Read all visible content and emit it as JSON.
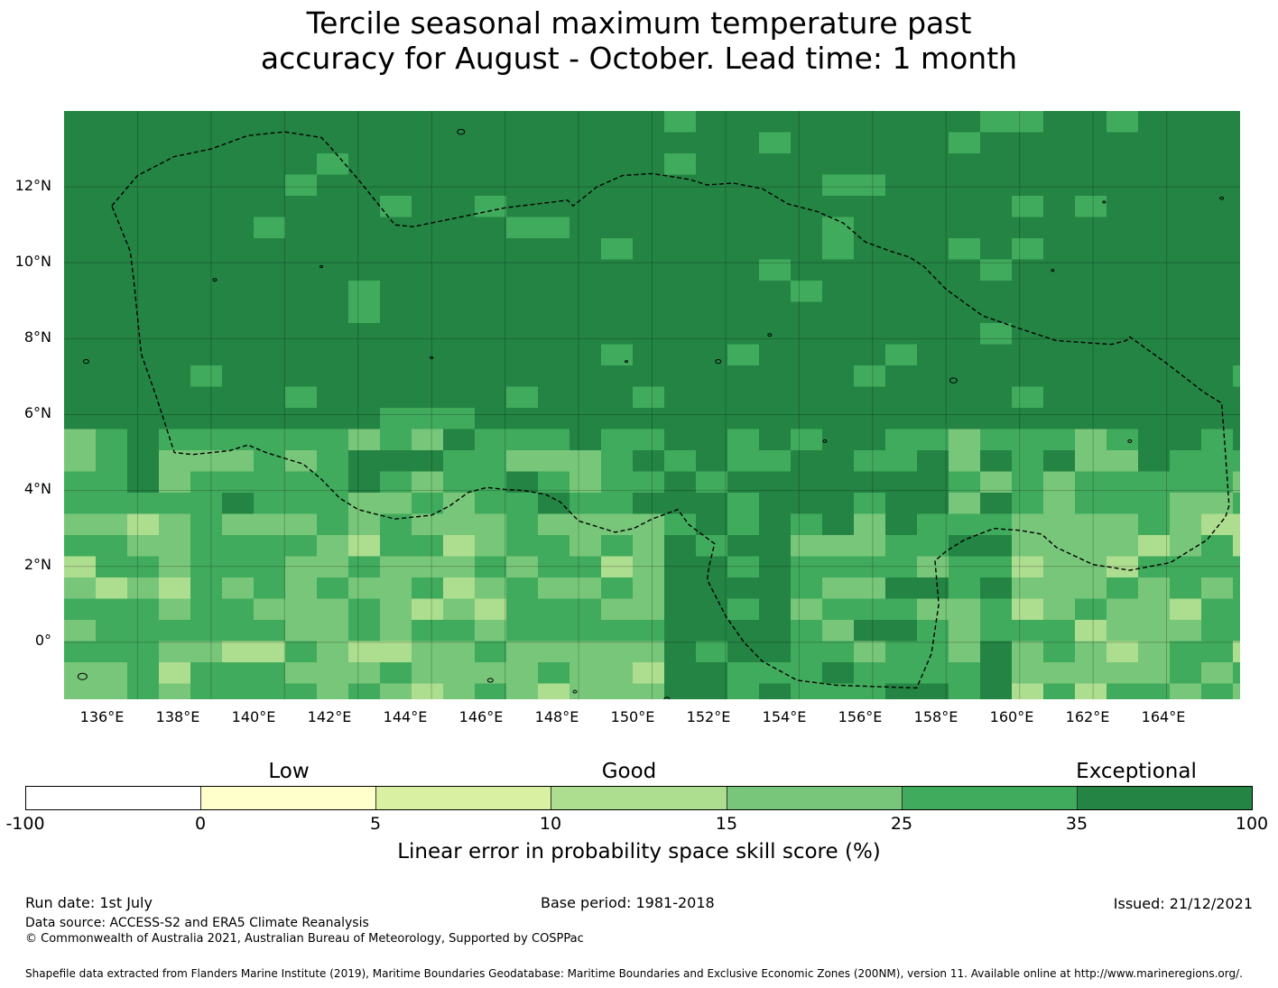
{
  "title": {
    "line1": "Tercile seasonal maximum temperature past",
    "line2": "accuracy for August - October. Lead time: 1 month"
  },
  "map": {
    "lat_labels": [
      "12°N",
      "10°N",
      "8°N",
      "6°N",
      "4°N",
      "2°N",
      "0°"
    ],
    "lon_labels": [
      "136°E",
      "138°E",
      "140°E",
      "142°E",
      "144°E",
      "146°E",
      "148°E",
      "150°E",
      "152°E",
      "154°E",
      "156°E",
      "158°E",
      "160°E",
      "162°E",
      "164°E"
    ],
    "extent": {
      "lon_min": 134,
      "lon_max": 166,
      "lat_min": -1.5,
      "lat_max": 14
    },
    "eez_boundary_lonlat": [
      [
        135.3,
        11.5
      ],
      [
        136.0,
        12.3
      ],
      [
        137.0,
        12.8
      ],
      [
        138.0,
        13.0
      ],
      [
        139.0,
        13.35
      ],
      [
        140.0,
        13.45
      ],
      [
        141.0,
        13.3
      ],
      [
        141.2,
        13.1
      ],
      [
        142.0,
        12.2
      ],
      [
        143.0,
        11.0
      ],
      [
        143.5,
        10.95
      ],
      [
        144.5,
        11.15
      ],
      [
        146.0,
        11.45
      ],
      [
        147.7,
        11.65
      ],
      [
        147.85,
        11.5
      ],
      [
        148.5,
        12.0
      ],
      [
        149.2,
        12.3
      ],
      [
        150.0,
        12.35
      ],
      [
        151.0,
        12.2
      ],
      [
        151.5,
        12.05
      ],
      [
        152.2,
        12.1
      ],
      [
        153.0,
        11.95
      ],
      [
        153.7,
        11.55
      ],
      [
        154.5,
        11.35
      ],
      [
        155.2,
        11.05
      ],
      [
        155.8,
        10.55
      ],
      [
        156.5,
        10.3
      ],
      [
        157.0,
        10.15
      ],
      [
        157.4,
        9.9
      ],
      [
        158.0,
        9.3
      ],
      [
        159.0,
        8.6
      ],
      [
        159.9,
        8.3
      ],
      [
        161.0,
        7.95
      ],
      [
        162.5,
        7.85
      ],
      [
        162.9,
        7.95
      ],
      [
        163.0,
        8.05
      ],
      [
        164.0,
        7.35
      ],
      [
        165.0,
        6.6
      ],
      [
        165.5,
        6.3
      ],
      [
        165.6,
        5.0
      ],
      [
        165.7,
        3.6
      ],
      [
        165.6,
        3.3
      ],
      [
        165.1,
        2.7
      ],
      [
        164.1,
        2.1
      ],
      [
        163.0,
        1.9
      ],
      [
        162.0,
        2.05
      ],
      [
        161.0,
        2.5
      ],
      [
        160.6,
        2.85
      ],
      [
        160.0,
        2.95
      ],
      [
        159.3,
        3.0
      ],
      [
        158.5,
        2.7
      ],
      [
        158.0,
        2.4
      ],
      [
        157.7,
        2.15
      ],
      [
        157.8,
        1.0
      ],
      [
        157.6,
        -0.3
      ],
      [
        157.2,
        -1.2
      ],
      [
        156.5,
        -1.18
      ],
      [
        155.0,
        -1.13
      ],
      [
        153.95,
        -1.0
      ],
      [
        153.0,
        -0.5
      ],
      [
        152.5,
        0.0
      ],
      [
        152.0,
        0.7
      ],
      [
        151.5,
        1.65
      ],
      [
        151.55,
        2.0
      ],
      [
        151.7,
        2.6
      ],
      [
        151.0,
        3.1
      ],
      [
        150.7,
        3.5
      ],
      [
        150.0,
        3.25
      ],
      [
        149.5,
        3.0
      ],
      [
        149.0,
        2.9
      ],
      [
        148.0,
        3.2
      ],
      [
        147.5,
        3.7
      ],
      [
        147.1,
        3.9
      ],
      [
        146.5,
        4.0
      ],
      [
        146.0,
        4.03
      ],
      [
        145.5,
        4.08
      ],
      [
        145.0,
        3.95
      ],
      [
        144.5,
        3.6
      ],
      [
        144.0,
        3.35
      ],
      [
        143.0,
        3.25
      ],
      [
        142.0,
        3.5
      ],
      [
        141.5,
        3.8
      ],
      [
        141.0,
        4.3
      ],
      [
        140.5,
        4.7
      ],
      [
        140.0,
        4.85
      ],
      [
        139.5,
        5.0
      ],
      [
        139.0,
        5.2
      ],
      [
        138.5,
        5.05
      ],
      [
        137.5,
        4.95
      ],
      [
        137.0,
        5.0
      ],
      [
        136.5,
        6.5
      ],
      [
        136.1,
        7.6
      ],
      [
        135.9,
        9.5
      ],
      [
        135.8,
        10.3
      ],
      [
        135.3,
        11.5
      ]
    ]
  },
  "colorbar": {
    "category_labels": [
      "Low",
      "Good",
      "Exceptional"
    ],
    "tick_labels": [
      "-100",
      "0",
      "5",
      "10",
      "15",
      "25",
      "35",
      "100"
    ],
    "colors": [
      "#ffffff",
      "#ffffcc",
      "#d9f0a3",
      "#addd8e",
      "#78c679",
      "#41ab5d",
      "#238443"
    ],
    "title": "Linear error in probability space skill score (%)"
  },
  "footer": {
    "run_date": "Run date: 1st July",
    "base_period": "Base period: 1981-2018",
    "issued": "Issued: 21/12/2021",
    "data_source": "Data source: ACCESS-S2 and ERA5 Climate Reanalysis",
    "copyright": "© Commonwealth of Australia 2021, Australian Bureau of Meteorology, Supported by COSPPac",
    "shapefile": "Shapefile data extracted from Flanders Marine Institute (2019), Maritime Boundaries Geodatabase: Maritime Boundaries and Exclusive Economic Zones (200NM), version 11. Available online at http://www.marineregions.org/."
  }
}
